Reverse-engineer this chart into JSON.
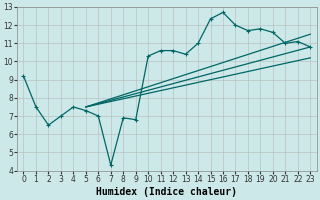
{
  "xlabel": "Humidex (Indice chaleur)",
  "bg_color": "#cce8e8",
  "line_color": "#006666",
  "xlim": [
    -0.5,
    23.5
  ],
  "ylim": [
    4,
    13
  ],
  "xticks": [
    0,
    1,
    2,
    3,
    4,
    5,
    6,
    7,
    8,
    9,
    10,
    11,
    12,
    13,
    14,
    15,
    16,
    17,
    18,
    19,
    20,
    21,
    22,
    23
  ],
  "yticks": [
    4,
    5,
    6,
    7,
    8,
    9,
    10,
    11,
    12,
    13
  ],
  "line1_x": [
    0,
    1,
    2,
    3,
    4,
    5,
    6,
    7,
    8,
    9,
    10,
    11,
    12,
    13,
    14,
    15,
    16,
    17,
    18,
    19,
    20,
    21,
    22,
    23
  ],
  "line1_y": [
    9.2,
    7.5,
    6.5,
    7.0,
    7.5,
    7.3,
    7.0,
    4.3,
    6.9,
    6.8,
    10.3,
    10.6,
    10.6,
    10.4,
    11.0,
    12.35,
    12.7,
    12.0,
    11.7,
    11.8,
    11.6,
    11.0,
    11.1,
    10.8
  ],
  "line2_x": [
    5,
    23
  ],
  "line2_y": [
    7.5,
    10.8
  ],
  "line3_x": [
    5,
    23
  ],
  "line3_y": [
    7.5,
    11.5
  ],
  "line4_x": [
    5,
    23
  ],
  "line4_y": [
    7.5,
    10.2
  ],
  "xlabel_fontsize": 7,
  "tick_fontsize": 5.5
}
